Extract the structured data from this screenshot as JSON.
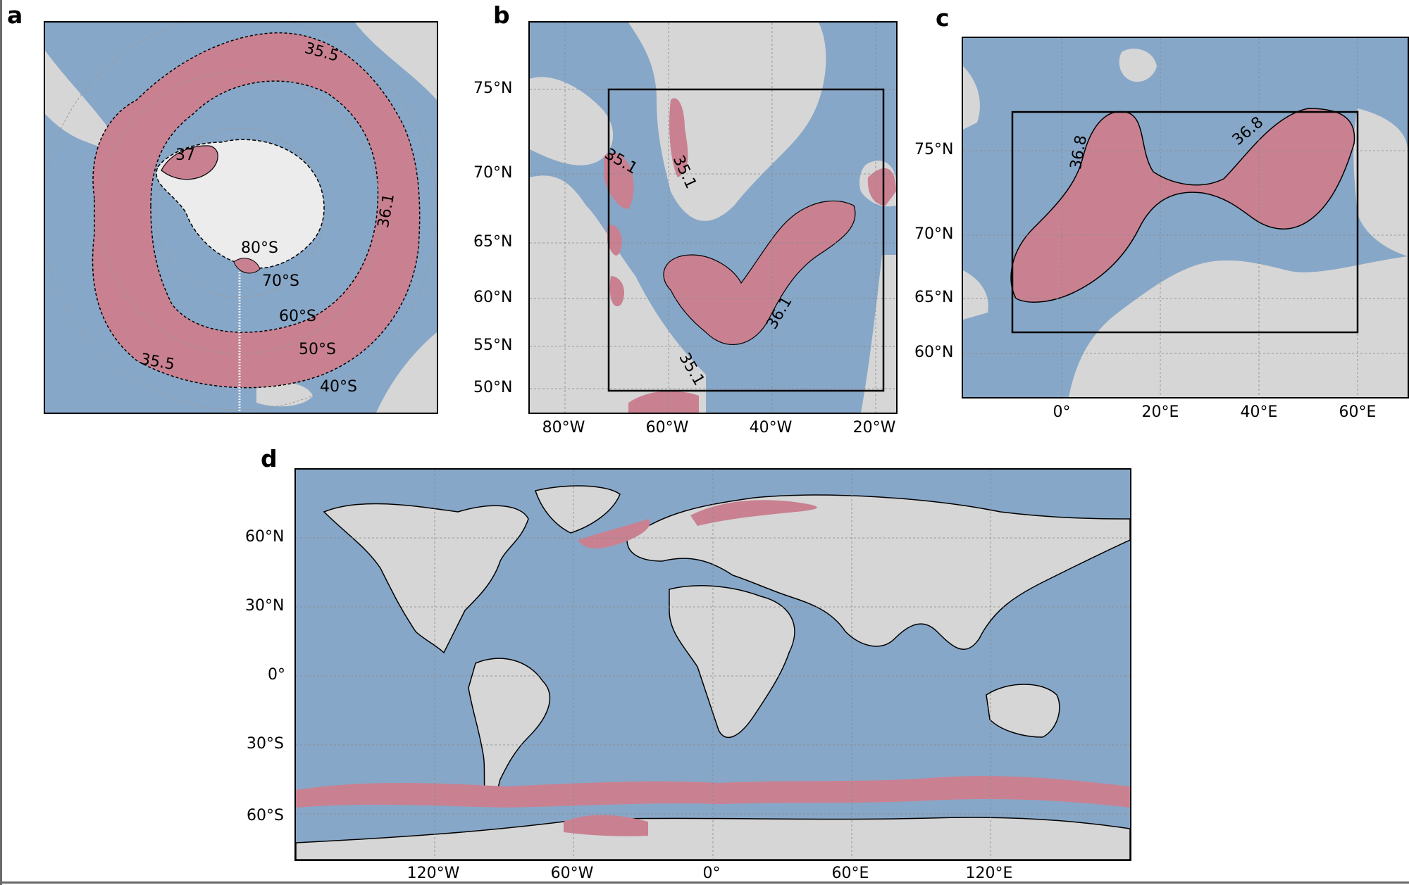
{
  "colors": {
    "ocean": "#87a7c8",
    "land": "#d6d6d6",
    "ice": "#ececec",
    "highlight": "#c98191",
    "outline": "#000000"
  },
  "panels": {
    "a": {
      "letter": "a",
      "lat_labels": [
        "80°S",
        "70°S",
        "60°S",
        "50°S",
        "40°S"
      ],
      "contour_labels": [
        "35.5",
        "37",
        "36.1",
        "35.5"
      ]
    },
    "b": {
      "letter": "b",
      "y_ticks": [
        "75°N",
        "70°N",
        "65°N",
        "60°N",
        "55°N",
        "50°N"
      ],
      "x_ticks": [
        "80°W",
        "60°W",
        "40°W",
        "20°W"
      ],
      "contour_labels": [
        "35.1",
        "35.1",
        "36.1",
        "35.1"
      ]
    },
    "c": {
      "letter": "c",
      "y_ticks": [
        "75°N",
        "70°N",
        "65°N",
        "60°N"
      ],
      "x_ticks": [
        "0°",
        "20°E",
        "40°E",
        "60°E"
      ],
      "contour_labels": [
        "36.8",
        "36.8"
      ]
    },
    "d": {
      "letter": "d",
      "y_ticks": [
        "60°N",
        "30°N",
        "0°",
        "30°S",
        "60°S"
      ],
      "x_ticks": [
        "120°W",
        "60°W",
        "0°",
        "60°E",
        "120°E"
      ]
    }
  }
}
